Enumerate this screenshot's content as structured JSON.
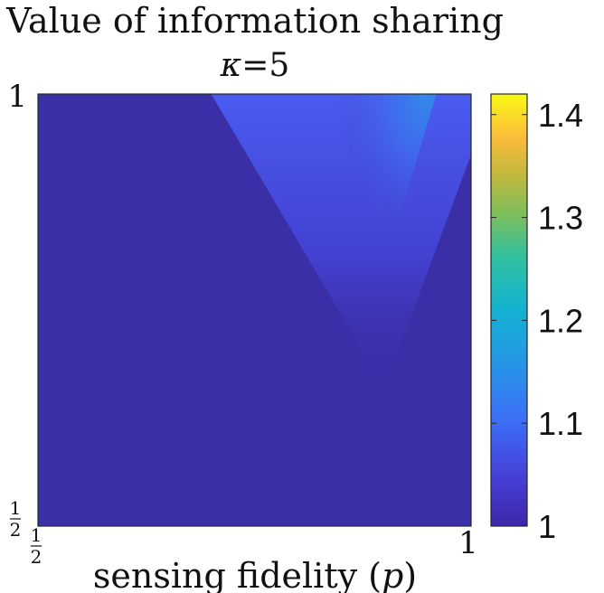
{
  "chart_data": {
    "type": "heatmap",
    "title": "Value of information sharing",
    "subtitle_symbol": "κ",
    "subtitle_value": "=5",
    "xlabel_text": "sensing fidelity (",
    "xlabel_var": "p",
    "xlabel_close": ")",
    "x_ticks": [
      {
        "value": 0.5,
        "num": "1",
        "den": "2"
      },
      {
        "value": 1,
        "label": "1"
      }
    ],
    "y_ticks": [
      {
        "value": 0.5,
        "num": "1",
        "den": "2"
      },
      {
        "value": 1,
        "label": "1"
      }
    ],
    "xlim": [
      0.5,
      1
    ],
    "ylim": [
      0.5,
      1
    ],
    "colorbar": {
      "min": 1,
      "max": 1.42,
      "ticks": [
        "1",
        "1.1",
        "1.2",
        "1.3",
        "1.4"
      ],
      "tick_values": [
        1,
        1.1,
        1.2,
        1.3,
        1.4
      ],
      "colormap": "parula"
    },
    "surface": {
      "description_peak_x": 0.9,
      "peak_value": 1.1,
      "background_value": 1.0
    }
  },
  "colors": {
    "background": "#ffffff",
    "axis": "#262626",
    "base_fill": "#3b2fa8"
  }
}
